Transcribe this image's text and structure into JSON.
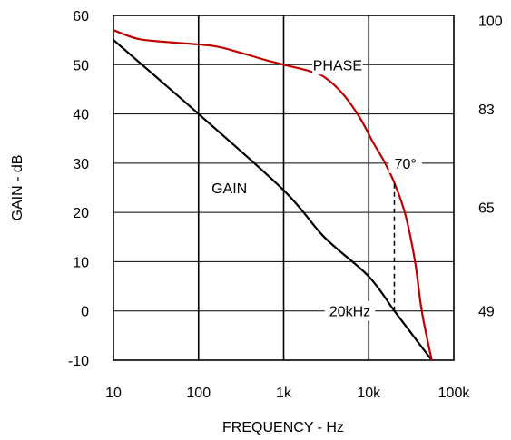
{
  "chart_data": {
    "type": "line",
    "xlabel": "FREQUENCY - Hz",
    "ylabel": "GAIN - dB",
    "x_scale": "log",
    "xlim": [
      10,
      100000
    ],
    "ylim": [
      -10,
      60
    ],
    "x_ticks": [
      {
        "value": 10,
        "label": "10"
      },
      {
        "value": 100,
        "label": "100"
      },
      {
        "value": 1000,
        "label": "1k"
      },
      {
        "value": 10000,
        "label": "10k"
      },
      {
        "value": 100000,
        "label": "100k"
      }
    ],
    "y_ticks": [
      {
        "value": 60,
        "label": "60"
      },
      {
        "value": 50,
        "label": "50"
      },
      {
        "value": 40,
        "label": "40"
      },
      {
        "value": 30,
        "label": "30"
      },
      {
        "value": 20,
        "label": "20"
      },
      {
        "value": 10,
        "label": "10"
      },
      {
        "value": 0,
        "label": "0"
      },
      {
        "value": -10,
        "label": "-10"
      }
    ],
    "y2_ticks": [
      {
        "value": 100,
        "label": "100"
      },
      {
        "value": 83,
        "label": "83"
      },
      {
        "value": 65,
        "label": "65"
      },
      {
        "value": 49,
        "label": "49"
      }
    ],
    "y2_map": [
      [
        100,
        59
      ],
      [
        83,
        41
      ],
      [
        65,
        21
      ],
      [
        49,
        0
      ]
    ],
    "grid": true,
    "series": [
      {
        "name": "GAIN",
        "axis": "left",
        "color": "#000000",
        "points": [
          [
            10,
            55
          ],
          [
            100,
            40
          ],
          [
            1000,
            24.5
          ],
          [
            3000,
            15
          ],
          [
            10000,
            7
          ],
          [
            20000,
            0
          ],
          [
            30000,
            -4
          ],
          [
            55000,
            -10
          ]
        ]
      },
      {
        "name": "PHASE",
        "axis": "right",
        "color": "#c00000",
        "points": [
          [
            10,
            57
          ],
          [
            20,
            55.2
          ],
          [
            50,
            54.5
          ],
          [
            150,
            53.8
          ],
          [
            300,
            52.5
          ],
          [
            600,
            51
          ],
          [
            1000,
            50
          ],
          [
            2000,
            48.7
          ],
          [
            3000,
            47.5
          ],
          [
            5000,
            44
          ],
          [
            8000,
            39
          ],
          [
            11000,
            34.5
          ],
          [
            15000,
            30.5
          ],
          [
            20000,
            26
          ],
          [
            27000,
            19.5
          ],
          [
            35000,
            10
          ],
          [
            42000,
            0
          ],
          [
            55000,
            -10
          ]
        ]
      }
    ],
    "annotations": [
      {
        "text": "PHASE",
        "x": 4300,
        "y": 50
      },
      {
        "text": "GAIN",
        "x": 230,
        "y": 25
      },
      {
        "text": "70°",
        "x": 27000,
        "y": 30
      },
      {
        "text": "20kHz",
        "x": 6000,
        "y": 0
      }
    ],
    "marker_line": {
      "x": 20000,
      "y_from": 0,
      "y_to": 26
    }
  }
}
